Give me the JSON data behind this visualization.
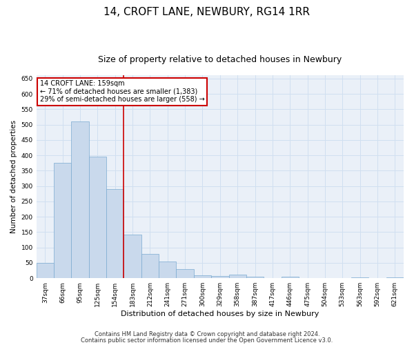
{
  "title": "14, CROFT LANE, NEWBURY, RG14 1RR",
  "subtitle": "Size of property relative to detached houses in Newbury",
  "xlabel": "Distribution of detached houses by size in Newbury",
  "ylabel": "Number of detached properties",
  "categories": [
    "37sqm",
    "66sqm",
    "95sqm",
    "125sqm",
    "154sqm",
    "183sqm",
    "212sqm",
    "241sqm",
    "271sqm",
    "300sqm",
    "329sqm",
    "358sqm",
    "387sqm",
    "417sqm",
    "446sqm",
    "475sqm",
    "504sqm",
    "533sqm",
    "563sqm",
    "592sqm",
    "621sqm"
  ],
  "values": [
    50,
    375,
    510,
    395,
    290,
    143,
    80,
    55,
    30,
    10,
    8,
    12,
    4,
    0,
    5,
    0,
    0,
    0,
    3,
    0,
    2
  ],
  "bar_color": "#c9d9ec",
  "bar_edge_color": "#7aaad0",
  "grid_color": "#d0dff0",
  "bg_color": "#eaf0f8",
  "annotation_text": "14 CROFT LANE: 159sqm\n← 71% of detached houses are smaller (1,383)\n29% of semi-detached houses are larger (558) →",
  "annotation_box_color": "#ffffff",
  "annotation_box_edge": "#cc0000",
  "red_line_x": 4.5,
  "ylim": [
    0,
    660
  ],
  "yticks": [
    0,
    50,
    100,
    150,
    200,
    250,
    300,
    350,
    400,
    450,
    500,
    550,
    600,
    650
  ],
  "footer_line1": "Contains HM Land Registry data © Crown copyright and database right 2024.",
  "footer_line2": "Contains public sector information licensed under the Open Government Licence v3.0.",
  "title_fontsize": 11,
  "subtitle_fontsize": 9,
  "xlabel_fontsize": 8,
  "ylabel_fontsize": 7.5,
  "tick_fontsize": 6.5,
  "annotation_fontsize": 7,
  "footer_fontsize": 6
}
